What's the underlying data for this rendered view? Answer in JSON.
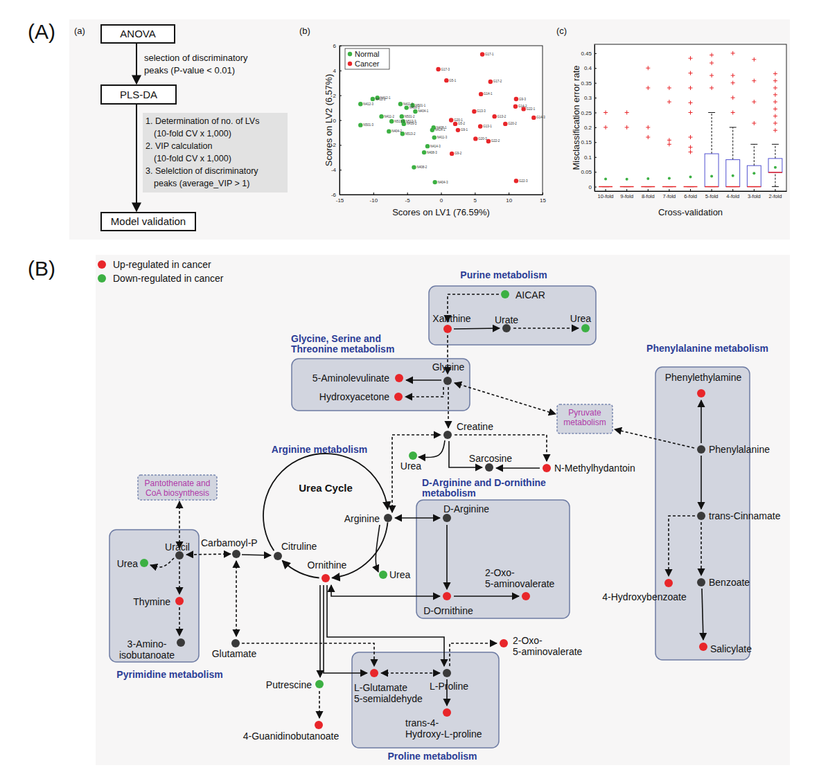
{
  "panels": [
    "(A)",
    "(B)"
  ],
  "flowchart": {
    "title": "(a)",
    "steps": [
      "ANOVA",
      "PLS-DA",
      "Model validation"
    ],
    "annotation": "selection of discriminatory\npeaks (P-value < 0.01)",
    "details": [
      {
        "text": "1. Determination of no. of LVs",
        "sub": "(10-fold CV x 1,000)"
      },
      {
        "text": "2. VIP calculation",
        "sub": "(10-fold CV x 1,000)"
      },
      {
        "text": "3. Selelction of discriminatory",
        "sub": "peaks (average_VIP > 1)"
      }
    ]
  },
  "chart_data": [
    {
      "type": "scatter",
      "title": "(b)",
      "xlabel": "Scores on LV1 (76.59%)",
      "ylabel": "Scores on LV2 (6.57%)",
      "xlim": [
        -15,
        15
      ],
      "xticks": [
        -15,
        -10,
        -5,
        0,
        5,
        10,
        15
      ],
      "ylim": [
        -6,
        6
      ],
      "yticks": [
        -6,
        -4,
        -2,
        0,
        2,
        4,
        6
      ],
      "legend": "upper left",
      "series": [
        {
          "name": "Normal",
          "color": "#3cb043",
          "marker": "circle",
          "x": [
            -11.9,
            -10.1,
            -9.4,
            -11.9,
            -8.8,
            -7.3,
            -7.7,
            -6.0,
            -5.1,
            -4.2,
            -5.8,
            -5.6,
            -5.7,
            -5.5,
            -3.8,
            -2.0,
            -1.0,
            -1.3,
            -1.1,
            -2.5,
            -4.0,
            -0.9
          ],
          "values": [
            1.3,
            1.7,
            1.8,
            -0.4,
            0.3,
            -0.1,
            -0.9,
            1.3,
            1.0,
            1.2,
            0.3,
            -0.1,
            -1.1,
            -0.3,
            0.7,
            -2.1,
            -1.4,
            -0.8,
            -0.6,
            -2.6,
            -3.8,
            -5.0
          ],
          "point_labels": [
            "N412-3",
            "N412-2",
            "N412-1",
            "N501-3",
            "N411-2",
            "N513-1",
            "N404-2",
            "N411-1",
            "N409-3",
            "N501-1",
            "N501-2",
            "N513-3",
            "N513-2",
            "N439-2",
            "N404-1",
            "N414-3",
            "N411-3",
            "N414-1",
            "N408-1",
            "N408-3",
            "N408-2",
            "N404-3"
          ]
        },
        {
          "name": "Cancer",
          "color": "#e8262a",
          "marker": "circle",
          "x": [
            6.1,
            -0.4,
            0.8,
            7.3,
            5.9,
            11.1,
            11.0,
            12.2,
            13.7,
            4.9,
            7.9,
            1.5,
            2.1,
            5.8,
            9.5,
            2.5,
            5.1,
            7.0,
            1.6,
            11.1
          ],
          "values": [
            5.3,
            4.1,
            3.2,
            3.1,
            2.1,
            1.7,
            1.1,
            0.9,
            0.2,
            0.7,
            0.3,
            0.0,
            -0.3,
            -0.5,
            -0.3,
            -0.8,
            -1.5,
            -1.7,
            -2.7,
            -4.9
          ],
          "point_labels": [
            "G17-1",
            "G17-3",
            "G5-1",
            "G17-2",
            "G14-1",
            "G9-3",
            "G14-2",
            "G22-1",
            "G14-3",
            "G13-3",
            "G13-2",
            "G20-1",
            "G5-2",
            "G13-1",
            "G20-2",
            "G9-1",
            "G20-3",
            "G22-2",
            "G9-2",
            "G22-3"
          ]
        }
      ]
    },
    {
      "type": "box",
      "title": "(c)",
      "xlabel": "Cross-validation",
      "ylabel": "Misclassification error rate",
      "color": "#5050d0",
      "categories": [
        "10-fold",
        "9-fold",
        "8-fold",
        "7-fold",
        "6-fold",
        "5-fold",
        "4-fold",
        "3-fold",
        "2-fold"
      ],
      "ylim": [
        -0.015,
        0.48
      ],
      "yticks": [
        0,
        0.05,
        0.1,
        0.15,
        0.2,
        0.25,
        0.3,
        0.35,
        0.4,
        0.45
      ],
      "whisker_low": [
        0,
        0,
        0,
        0,
        0,
        0,
        0,
        0,
        0
      ],
      "q1": [
        0,
        0,
        0,
        0,
        0,
        0,
        0,
        0,
        0.048
      ],
      "median": [
        0,
        0,
        0,
        0,
        0,
        0,
        0,
        0,
        0.048
      ],
      "q3": [
        0,
        0,
        0,
        0,
        0,
        0.111,
        0.091,
        0.071,
        0.095
      ],
      "whisker_high": [
        0,
        0,
        0,
        0,
        0,
        0.25,
        0.2,
        0.143,
        0.143
      ],
      "mean": [
        0.026,
        0.025,
        0.027,
        0.028,
        0.033,
        0.035,
        0.037,
        0.045,
        0.065
      ],
      "outliers": [
        [
          0.2,
          0.25
        ],
        [
          0.2,
          0.25
        ],
        [
          0.167,
          0.2,
          0.333,
          0.4
        ],
        [
          0.143,
          0.157,
          0.286,
          0.333
        ],
        [
          0.117,
          0.133,
          0.167,
          0.25,
          0.283,
          0.333,
          0.383,
          0.433
        ],
        [
          0.333,
          0.375,
          0.417,
          0.444
        ],
        [
          0.25,
          0.3,
          0.35,
          0.375,
          0.45
        ],
        [
          0.214,
          0.286,
          0.357,
          0.429
        ],
        [
          0.19,
          0.214,
          0.238,
          0.262,
          0.286,
          0.31,
          0.333,
          0.357,
          0.381
        ]
      ]
    }
  ],
  "pathway": {
    "legend": [
      {
        "label": "Up-regulated in cancer",
        "color": "#e8262a"
      },
      {
        "label": "Down-regulated in cancer",
        "color": "#3cb043"
      }
    ],
    "groups": [
      "Purine metabolism",
      "Glycine, Serine and\nThreonine metabolism",
      "Arginine metabolism",
      "D-Arginine and D-ornithine\nmetabolism",
      "Phenylalanine metabolism",
      "Pyrimidine metabolism",
      "Proline metabolism"
    ],
    "cycle": "Urea Cycle",
    "external": [
      "Pyruvate\nmetabolism",
      "Pantothenate and\nCoA biosynthesis"
    ],
    "nodes": [
      {
        "label": "AICAR",
        "color": "#3cb043"
      },
      {
        "label": "Xanthine",
        "color": "#e8262a"
      },
      {
        "label": "Urate",
        "color": "#3a3a3a"
      },
      {
        "label": "Urea",
        "color": "#3cb043"
      },
      {
        "label": "Glycine",
        "color": "#3a3a3a"
      },
      {
        "label": "5-Aminolevulinate",
        "color": "#e8262a"
      },
      {
        "label": "Hydroxyacetone",
        "color": "#e8262a"
      },
      {
        "label": "Creatine",
        "color": "#3a3a3a"
      },
      {
        "label": "Urea",
        "color": "#3cb043"
      },
      {
        "label": "Sarcosine",
        "color": "#3a3a3a"
      },
      {
        "label": "N-Methylhydantoin",
        "color": "#e8262a"
      },
      {
        "label": "Arginine",
        "color": "#3a3a3a"
      },
      {
        "label": "D-Arginine",
        "color": "#3a3a3a"
      },
      {
        "label": "Ornithine",
        "color": "#e8262a"
      },
      {
        "label": "Urea",
        "color": "#3cb043"
      },
      {
        "label": "D-Ornithine",
        "color": "#e8262a"
      },
      {
        "label": "2-Oxo-\n5-aminovalerate",
        "color": "#e8262a"
      },
      {
        "label": "Citruline",
        "color": "#3a3a3a"
      },
      {
        "label": "Carbamoyl-P",
        "color": "#3a3a3a"
      },
      {
        "label": "Uracil",
        "color": "#3a3a3a"
      },
      {
        "label": "Urea",
        "color": "#3cb043"
      },
      {
        "label": "Thymine",
        "color": "#e8262a"
      },
      {
        "label": "3-Amino-\nisobutanoate",
        "color": "#3a3a3a"
      },
      {
        "label": "Glutamate",
        "color": "#3a3a3a"
      },
      {
        "label": "Putrescine",
        "color": "#3cb043"
      },
      {
        "label": "4-Guanidinobutanoate",
        "color": "#e8262a"
      },
      {
        "label": "L-Glutamate\n5-semialdehyde",
        "color": "#e8262a"
      },
      {
        "label": "L-Proline",
        "color": "#3a3a3a"
      },
      {
        "label": "trans-4-\nHydroxy-L-proline",
        "color": "#e8262a"
      },
      {
        "label": "2-Oxo-\n5-aminovalerate",
        "color": "#e8262a"
      },
      {
        "label": "Phenylethylamine",
        "color": "#e8262a"
      },
      {
        "label": "Phenylalanine",
        "color": "#3a3a3a"
      },
      {
        "label": "trans-Cinnamate",
        "color": "#3a3a3a"
      },
      {
        "label": "4-Hydroxybenzoate",
        "color": "#e8262a"
      },
      {
        "label": "Benzoate",
        "color": "#3a3a3a"
      },
      {
        "label": "Salicylate",
        "color": "#e8262a"
      }
    ]
  }
}
